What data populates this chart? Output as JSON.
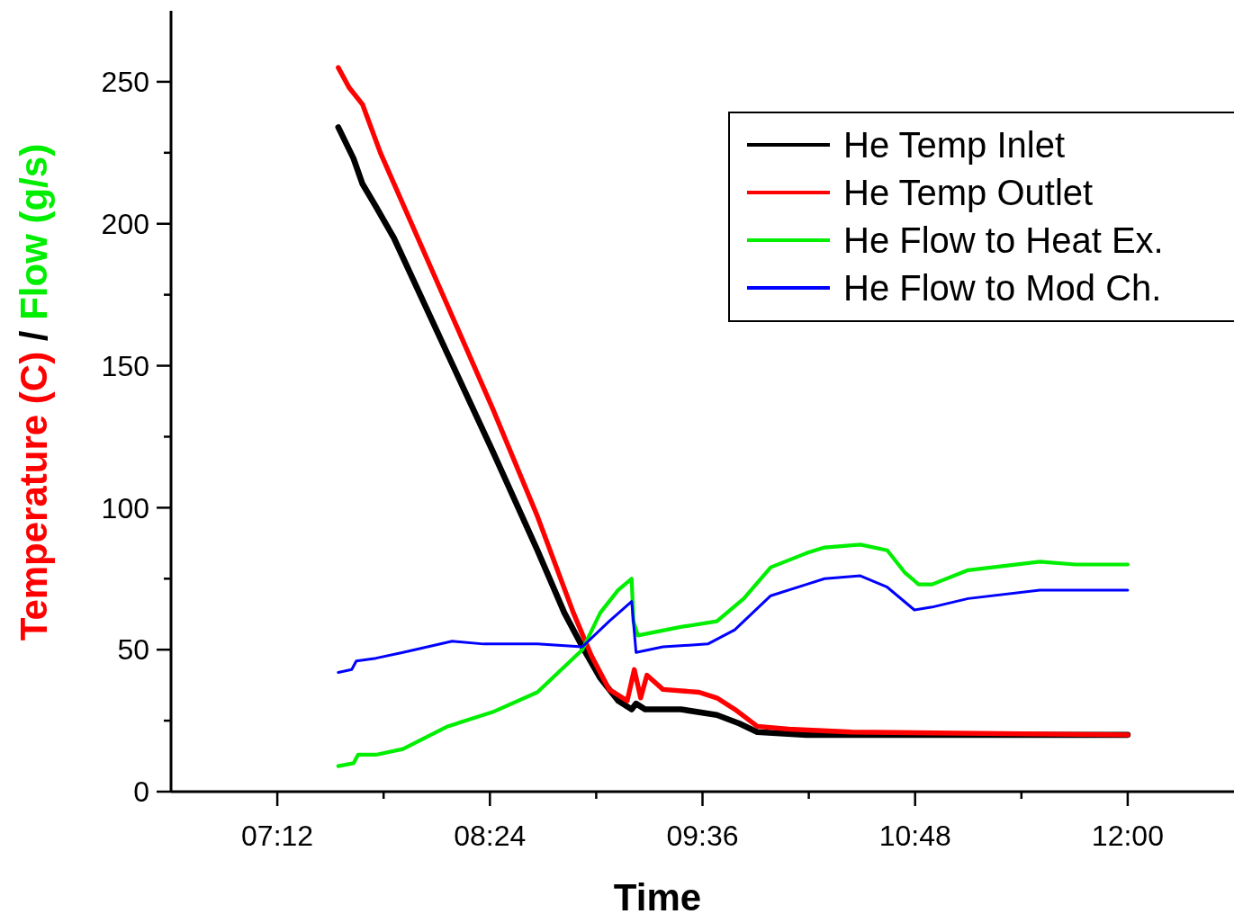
{
  "chart_data": {
    "type": "line",
    "xlabel": "Time",
    "ylabel": "Temperature (C) / Flow (g/s)",
    "xlim": [
      6.6,
      12.6
    ],
    "ylim": [
      0,
      275
    ],
    "xticks": [
      {
        "value": 7.2,
        "label": "07:12"
      },
      {
        "value": 7.8,
        "label": null
      },
      {
        "value": 8.4,
        "label": "08:24"
      },
      {
        "value": 9.0,
        "label": null
      },
      {
        "value": 9.6,
        "label": "09:36"
      },
      {
        "value": 10.2,
        "label": null
      },
      {
        "value": 10.8,
        "label": "10:48"
      },
      {
        "value": 11.4,
        "label": null
      },
      {
        "value": 12.0,
        "label": "12:00"
      }
    ],
    "yticks": [
      0,
      {
        "value": 25,
        "label": null
      },
      50,
      {
        "value": 75,
        "label": null
      },
      100,
      {
        "value": 125,
        "label": null
      },
      150,
      {
        "value": 175,
        "label": null
      },
      200,
      {
        "value": 225,
        "label": null
      },
      250
    ],
    "grid": false,
    "legend": "top right",
    "marker": "none",
    "line_style": "solid",
    "series": [
      {
        "name": "He Temp Inlet",
        "color": "#000000",
        "x": [
          7.544,
          7.63,
          7.681,
          7.757,
          7.858,
          8.162,
          8.415,
          8.668,
          8.82,
          8.922,
          9.023,
          9.124,
          9.2,
          9.225,
          9.276,
          9.478,
          9.681,
          9.808,
          9.909,
          10.187,
          10.846,
          12.0
        ],
        "values": [
          234,
          223,
          214,
          206,
          195,
          154,
          120,
          85,
          63,
          51,
          40,
          32,
          29,
          31,
          29,
          29,
          27,
          24,
          21,
          20,
          20,
          20
        ]
      },
      {
        "name": "He Temp Outlet",
        "color": "#ff0000",
        "x": [
          7.544,
          7.605,
          7.681,
          7.782,
          8.162,
          8.415,
          8.668,
          8.871,
          8.972,
          9.073,
          9.175,
          9.215,
          9.251,
          9.286,
          9.377,
          9.58,
          9.681,
          9.782,
          9.909,
          10.086,
          10.441,
          12.0
        ],
        "values": [
          255,
          248,
          242,
          225,
          171,
          135,
          97,
          63,
          48,
          36,
          32,
          43,
          33,
          41,
          36,
          35,
          33,
          29,
          23,
          22,
          21,
          20
        ]
      },
      {
        "name": "He Flow to Heat Ex.",
        "color": "#00ee00",
        "x": [
          7.544,
          7.63,
          7.656,
          7.757,
          7.909,
          8.162,
          8.415,
          8.668,
          8.77,
          8.922,
          9.023,
          9.124,
          9.2,
          9.21,
          9.235,
          9.478,
          9.681,
          9.833,
          9.985,
          10.187,
          10.289,
          10.491,
          10.643,
          10.744,
          10.82,
          10.896,
          11.099,
          11.504,
          11.706,
          12.0
        ],
        "values": [
          9,
          10,
          13,
          13,
          15,
          23,
          28,
          35,
          41,
          50,
          63,
          71,
          75,
          60,
          55,
          58,
          60,
          68,
          79,
          84,
          86,
          87,
          85,
          77,
          73,
          73,
          78,
          81,
          80,
          80
        ]
      },
      {
        "name": "He Flow to Mod Ch.",
        "color": "#0000ff",
        "x": [
          7.544,
          7.62,
          7.646,
          7.757,
          7.909,
          8.187,
          8.365,
          8.516,
          8.668,
          8.922,
          9.073,
          9.2,
          9.225,
          9.377,
          9.63,
          9.782,
          9.985,
          10.187,
          10.289,
          10.491,
          10.643,
          10.796,
          10.896,
          11.099,
          11.504,
          12.0
        ],
        "values": [
          42,
          43,
          46,
          47,
          49,
          53,
          52,
          52,
          52,
          51,
          60,
          67,
          49,
          51,
          52,
          57,
          69,
          73,
          75,
          76,
          72,
          64,
          65,
          68,
          71,
          71
        ]
      }
    ]
  }
}
